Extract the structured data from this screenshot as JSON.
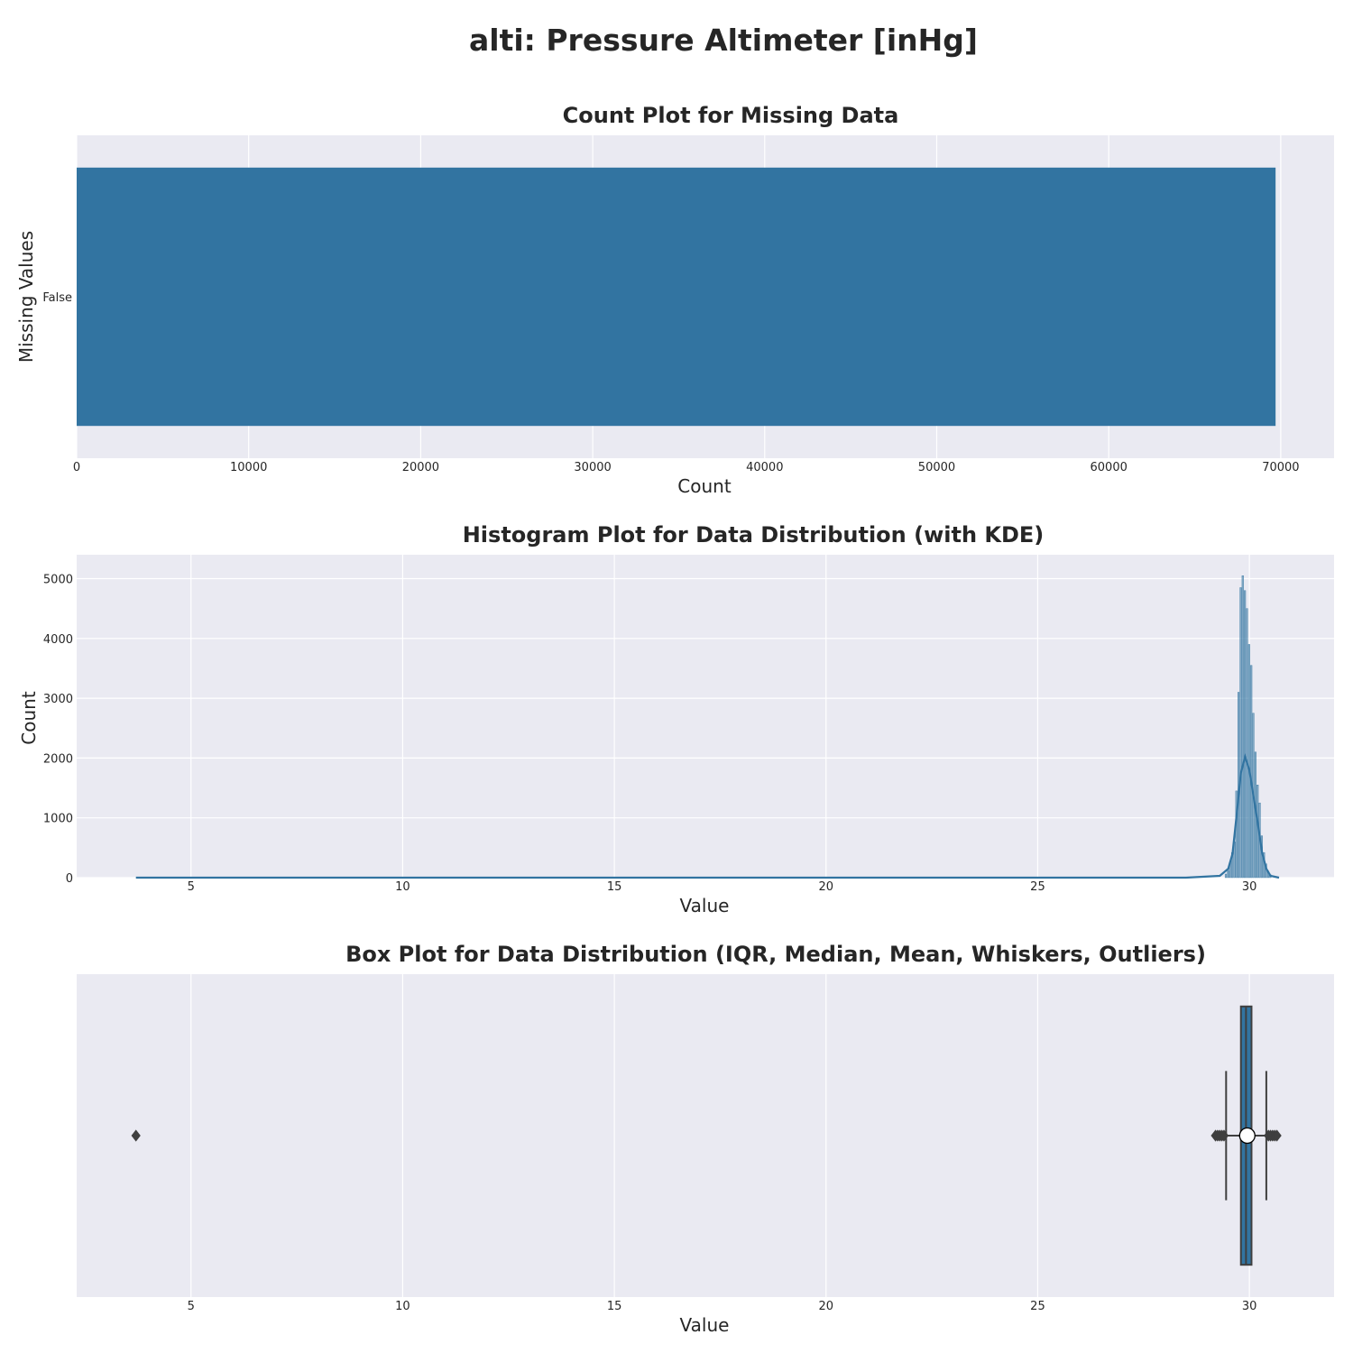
{
  "figure": {
    "title": "alti: Pressure Altimeter [inHg]"
  },
  "colors": {
    "primary": "#3274a1",
    "panel_background": "#eaeaf2",
    "grid": "#ffffff",
    "box_edge": "#3f3f3f"
  },
  "chart_data": [
    {
      "type": "bar",
      "orientation": "horizontal",
      "title": "Count Plot for Missing Data",
      "xlabel": "Count",
      "ylabel": "Missing Values",
      "categories": [
        "False"
      ],
      "values": [
        69700
      ],
      "xlim": [
        0,
        73100
      ],
      "xticks": [
        0,
        10000,
        20000,
        30000,
        40000,
        50000,
        60000,
        70000
      ],
      "grid": true
    },
    {
      "type": "histogram",
      "title": "Histogram Plot for Data Distribution (with KDE)",
      "xlabel": "Value",
      "ylabel": "Count",
      "xlim": [
        2.3,
        32.0
      ],
      "ylim": [
        0,
        5400
      ],
      "xticks": [
        5,
        10,
        15,
        20,
        25,
        30
      ],
      "yticks": [
        0,
        1000,
        2000,
        3000,
        4000,
        5000
      ],
      "bins": [
        {
          "x": 29.45,
          "count": 60
        },
        {
          "x": 29.5,
          "count": 120
        },
        {
          "x": 29.55,
          "count": 250
        },
        {
          "x": 29.6,
          "count": 420
        },
        {
          "x": 29.65,
          "count": 600
        },
        {
          "x": 29.7,
          "count": 1450
        },
        {
          "x": 29.75,
          "count": 3100
        },
        {
          "x": 29.8,
          "count": 4850
        },
        {
          "x": 29.85,
          "count": 5050
        },
        {
          "x": 29.9,
          "count": 4800
        },
        {
          "x": 29.95,
          "count": 4500
        },
        {
          "x": 30.0,
          "count": 3900
        },
        {
          "x": 30.05,
          "count": 3550
        },
        {
          "x": 30.1,
          "count": 2750
        },
        {
          "x": 30.15,
          "count": 2100
        },
        {
          "x": 30.2,
          "count": 1550
        },
        {
          "x": 30.25,
          "count": 1250
        },
        {
          "x": 30.3,
          "count": 700
        },
        {
          "x": 30.35,
          "count": 420
        },
        {
          "x": 30.4,
          "count": 230
        },
        {
          "x": 30.45,
          "count": 110
        },
        {
          "x": 30.5,
          "count": 50
        }
      ],
      "kde": {
        "x": [
          3.7,
          28.5,
          29.3,
          29.5,
          29.6,
          29.7,
          29.8,
          29.9,
          30.0,
          30.1,
          30.2,
          30.3,
          30.4,
          30.5,
          30.7
        ],
        "y": [
          0,
          0,
          30,
          150,
          400,
          1050,
          1750,
          2020,
          1800,
          1350,
          900,
          420,
          150,
          30,
          0
        ]
      },
      "grid": true
    },
    {
      "type": "box",
      "orientation": "horizontal",
      "title": "Box Plot for Data Distribution (IQR, Median, Mean, Whiskers, Outliers)",
      "xlabel": "Value",
      "xlim": [
        2.3,
        32.0
      ],
      "xticks": [
        5,
        10,
        15,
        20,
        25,
        30
      ],
      "q1": 29.8,
      "median": 29.92,
      "q3": 30.05,
      "mean": 29.95,
      "whisker_low": 29.45,
      "whisker_high": 30.4,
      "outliers": [
        3.7,
        29.2,
        29.25,
        29.3,
        29.35,
        29.4,
        30.45,
        30.5,
        30.55,
        30.6,
        30.65
      ],
      "grid": true
    }
  ]
}
